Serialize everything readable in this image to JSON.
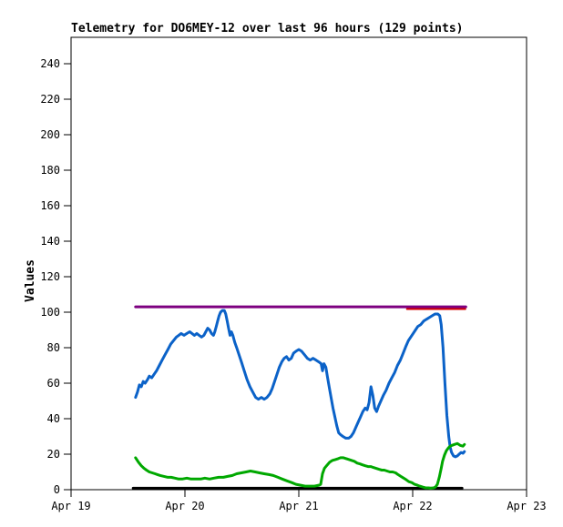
{
  "chart": {
    "title": "Telemetry for DO6MEY-12 over last 96 hours (129 points)",
    "ylabel": "Values"
  },
  "chart_data": {
    "type": "line",
    "title": "Telemetry for DO6MEY-12 over last 96 hours (129 points)",
    "xlabel": "",
    "ylabel": "Values",
    "x_unit": "hours since Apr 19 00:00",
    "xlim": [
      0,
      96
    ],
    "ylim": [
      0,
      255
    ],
    "y_ticks": [
      0,
      20,
      40,
      60,
      80,
      100,
      120,
      140,
      160,
      180,
      200,
      220,
      240
    ],
    "x_ticks": [
      {
        "hour": 0,
        "label": "Apr 19"
      },
      {
        "hour": 24,
        "label": "Apr 20"
      },
      {
        "hour": 48,
        "label": "Apr 21"
      },
      {
        "hour": 72,
        "label": "Apr 22"
      },
      {
        "hour": 96,
        "label": "Apr 23"
      }
    ],
    "grid": false,
    "legend": "none",
    "frame_color": "#000000",
    "background": "#ffffff",
    "series": [
      {
        "name": "baseline-black",
        "color": "#000000",
        "width": 3,
        "points": [
          [
            13.1,
            0.8
          ],
          [
            82.4,
            0.8
          ]
        ]
      },
      {
        "name": "threshold-purple",
        "color": "#7d0080",
        "width": 3,
        "points": [
          [
            13.6,
            103
          ],
          [
            83.2,
            103
          ]
        ]
      },
      {
        "name": "threshold-red",
        "color": "#d40000",
        "width": 2,
        "points": [
          [
            70.8,
            101.8
          ],
          [
            83.1,
            101.8
          ]
        ]
      },
      {
        "name": "channel-blue",
        "color": "#0b62c8",
        "width": 3,
        "points": [
          [
            13.6,
            52
          ],
          [
            14.0,
            55
          ],
          [
            14.4,
            59
          ],
          [
            14.8,
            58
          ],
          [
            15.2,
            61
          ],
          [
            15.6,
            60
          ],
          [
            16.1,
            62
          ],
          [
            16.5,
            64
          ],
          [
            17.0,
            63
          ],
          [
            17.5,
            65
          ],
          [
            18.0,
            67
          ],
          [
            18.6,
            70
          ],
          [
            19.2,
            73
          ],
          [
            19.8,
            76
          ],
          [
            20.4,
            79
          ],
          [
            21.0,
            82
          ],
          [
            21.6,
            84
          ],
          [
            22.2,
            86
          ],
          [
            22.7,
            87
          ],
          [
            23.2,
            88
          ],
          [
            23.8,
            87
          ],
          [
            24.4,
            88
          ],
          [
            25.0,
            89
          ],
          [
            25.5,
            88
          ],
          [
            26.0,
            87
          ],
          [
            26.5,
            88
          ],
          [
            27.0,
            87
          ],
          [
            27.5,
            86
          ],
          [
            28.0,
            87
          ],
          [
            28.4,
            89
          ],
          [
            28.8,
            91
          ],
          [
            29.2,
            90
          ],
          [
            29.6,
            88
          ],
          [
            30.0,
            87
          ],
          [
            30.3,
            89
          ],
          [
            30.6,
            92
          ],
          [
            30.9,
            95
          ],
          [
            31.2,
            98
          ],
          [
            31.5,
            100
          ],
          [
            31.9,
            101
          ],
          [
            32.3,
            101
          ],
          [
            32.6,
            99
          ],
          [
            32.9,
            95
          ],
          [
            33.2,
            91
          ],
          [
            33.5,
            87
          ],
          [
            33.8,
            89
          ],
          [
            34.1,
            87
          ],
          [
            34.5,
            83
          ],
          [
            34.9,
            80
          ],
          [
            35.4,
            76
          ],
          [
            35.9,
            72
          ],
          [
            36.5,
            67
          ],
          [
            37.1,
            62
          ],
          [
            37.7,
            58
          ],
          [
            38.3,
            55
          ],
          [
            38.9,
            52
          ],
          [
            39.5,
            51
          ],
          [
            40.1,
            52
          ],
          [
            40.7,
            51
          ],
          [
            41.3,
            52
          ],
          [
            41.9,
            54
          ],
          [
            42.4,
            57
          ],
          [
            42.9,
            61
          ],
          [
            43.4,
            65
          ],
          [
            43.9,
            69
          ],
          [
            44.4,
            72
          ],
          [
            44.9,
            74
          ],
          [
            45.4,
            75
          ],
          [
            45.9,
            73
          ],
          [
            46.4,
            74
          ],
          [
            46.9,
            77
          ],
          [
            47.4,
            78
          ],
          [
            48.0,
            79
          ],
          [
            48.6,
            78
          ],
          [
            49.2,
            76
          ],
          [
            49.8,
            74
          ],
          [
            50.4,
            73
          ],
          [
            51.0,
            74
          ],
          [
            51.6,
            73
          ],
          [
            52.2,
            72
          ],
          [
            52.7,
            71
          ],
          [
            53.0,
            67
          ],
          [
            53.3,
            71
          ],
          [
            53.7,
            69
          ],
          [
            54.0,
            64
          ],
          [
            54.4,
            58
          ],
          [
            54.8,
            52
          ],
          [
            55.2,
            46
          ],
          [
            55.6,
            41
          ],
          [
            56.0,
            36
          ],
          [
            56.4,
            32
          ],
          [
            56.8,
            31
          ],
          [
            57.3,
            30
          ],
          [
            57.9,
            29
          ],
          [
            58.5,
            29
          ],
          [
            59.0,
            30
          ],
          [
            59.5,
            32
          ],
          [
            60.0,
            35
          ],
          [
            60.5,
            38
          ],
          [
            61.0,
            41
          ],
          [
            61.5,
            44
          ],
          [
            62.0,
            46
          ],
          [
            62.4,
            45
          ],
          [
            62.8,
            49
          ],
          [
            63.2,
            58
          ],
          [
            63.6,
            53
          ],
          [
            64.0,
            46
          ],
          [
            64.4,
            44
          ],
          [
            64.8,
            47
          ],
          [
            65.3,
            50
          ],
          [
            65.8,
            53
          ],
          [
            66.4,
            56
          ],
          [
            67.0,
            60
          ],
          [
            67.6,
            63
          ],
          [
            68.2,
            66
          ],
          [
            68.8,
            70
          ],
          [
            69.4,
            73
          ],
          [
            70.0,
            77
          ],
          [
            70.6,
            81
          ],
          [
            71.1,
            84
          ],
          [
            71.6,
            86
          ],
          [
            72.1,
            88
          ],
          [
            72.6,
            90
          ],
          [
            73.1,
            92
          ],
          [
            73.7,
            93
          ],
          [
            74.3,
            95
          ],
          [
            74.9,
            96
          ],
          [
            75.5,
            97
          ],
          [
            76.1,
            98
          ],
          [
            76.7,
            99
          ],
          [
            77.3,
            99
          ],
          [
            77.7,
            98
          ],
          [
            78.0,
            93
          ],
          [
            78.4,
            80
          ],
          [
            78.8,
            60
          ],
          [
            79.2,
            42
          ],
          [
            79.6,
            30
          ],
          [
            79.9,
            24
          ],
          [
            80.2,
            21
          ],
          [
            80.6,
            19
          ],
          [
            81.0,
            18.5
          ],
          [
            81.4,
            19
          ],
          [
            81.8,
            20
          ],
          [
            82.2,
            21
          ],
          [
            82.6,
            20.5
          ],
          [
            82.9,
            21.5
          ]
        ]
      },
      {
        "name": "channel-green",
        "color": "#00a800",
        "width": 3,
        "points": [
          [
            13.6,
            18
          ],
          [
            14.2,
            15.5
          ],
          [
            14.8,
            13.5
          ],
          [
            15.4,
            12
          ],
          [
            15.9,
            11
          ],
          [
            16.5,
            10
          ],
          [
            17.1,
            9.5
          ],
          [
            17.7,
            9
          ],
          [
            18.2,
            8.5
          ],
          [
            18.8,
            8
          ],
          [
            19.6,
            7.5
          ],
          [
            20.4,
            7
          ],
          [
            21.1,
            7
          ],
          [
            21.9,
            6.5
          ],
          [
            22.7,
            6
          ],
          [
            23.4,
            6
          ],
          [
            24.4,
            6.5
          ],
          [
            25.3,
            6
          ],
          [
            26.3,
            6
          ],
          [
            27.3,
            6
          ],
          [
            28.2,
            6.5
          ],
          [
            29.2,
            6
          ],
          [
            30.1,
            6.5
          ],
          [
            31.1,
            7
          ],
          [
            32.1,
            7
          ],
          [
            33.0,
            7.5
          ],
          [
            34.0,
            8
          ],
          [
            34.9,
            9
          ],
          [
            35.9,
            9.5
          ],
          [
            36.9,
            10
          ],
          [
            37.8,
            10.5
          ],
          [
            38.8,
            10
          ],
          [
            39.7,
            9.5
          ],
          [
            40.7,
            9
          ],
          [
            41.7,
            8.5
          ],
          [
            42.6,
            8
          ],
          [
            43.6,
            7
          ],
          [
            44.5,
            6
          ],
          [
            45.5,
            5
          ],
          [
            46.5,
            4
          ],
          [
            47.4,
            3
          ],
          [
            48.4,
            2.5
          ],
          [
            49.3,
            2
          ],
          [
            50.3,
            2
          ],
          [
            51.3,
            2
          ],
          [
            52.2,
            2.5
          ],
          [
            52.6,
            3
          ],
          [
            53.0,
            9
          ],
          [
            53.4,
            12
          ],
          [
            54.0,
            14
          ],
          [
            54.5,
            15.5
          ],
          [
            55.1,
            16.5
          ],
          [
            55.7,
            17
          ],
          [
            56.3,
            17.5
          ],
          [
            56.8,
            18
          ],
          [
            57.4,
            18
          ],
          [
            58.0,
            17.5
          ],
          [
            58.6,
            17
          ],
          [
            59.1,
            16.5
          ],
          [
            59.7,
            16
          ],
          [
            60.3,
            15
          ],
          [
            60.9,
            14.5
          ],
          [
            61.4,
            14
          ],
          [
            62.0,
            13.5
          ],
          [
            62.6,
            13
          ],
          [
            63.2,
            13
          ],
          [
            63.7,
            12.5
          ],
          [
            64.3,
            12
          ],
          [
            64.9,
            11.5
          ],
          [
            65.5,
            11
          ],
          [
            66.0,
            11
          ],
          [
            66.6,
            10.5
          ],
          [
            67.2,
            10
          ],
          [
            67.8,
            10
          ],
          [
            68.4,
            9.5
          ],
          [
            68.9,
            8.5
          ],
          [
            69.5,
            7.5
          ],
          [
            70.1,
            6.5
          ],
          [
            70.7,
            5.5
          ],
          [
            71.2,
            4.5
          ],
          [
            71.8,
            4
          ],
          [
            72.4,
            3
          ],
          [
            73.0,
            2.5
          ],
          [
            73.5,
            2
          ],
          [
            74.1,
            1.5
          ],
          [
            74.7,
            1
          ],
          [
            75.3,
            1
          ],
          [
            75.8,
            0.8
          ],
          [
            76.4,
            1
          ],
          [
            76.8,
            1.5
          ],
          [
            77.2,
            3
          ],
          [
            77.6,
            7
          ],
          [
            78.0,
            12
          ],
          [
            78.3,
            16
          ],
          [
            78.7,
            19.5
          ],
          [
            79.1,
            22
          ],
          [
            79.5,
            23.5
          ],
          [
            79.9,
            24.5
          ],
          [
            80.3,
            25
          ],
          [
            80.8,
            25.5
          ],
          [
            81.4,
            26
          ],
          [
            82.0,
            25
          ],
          [
            82.6,
            24.5
          ],
          [
            82.9,
            25.5
          ]
        ]
      }
    ]
  }
}
